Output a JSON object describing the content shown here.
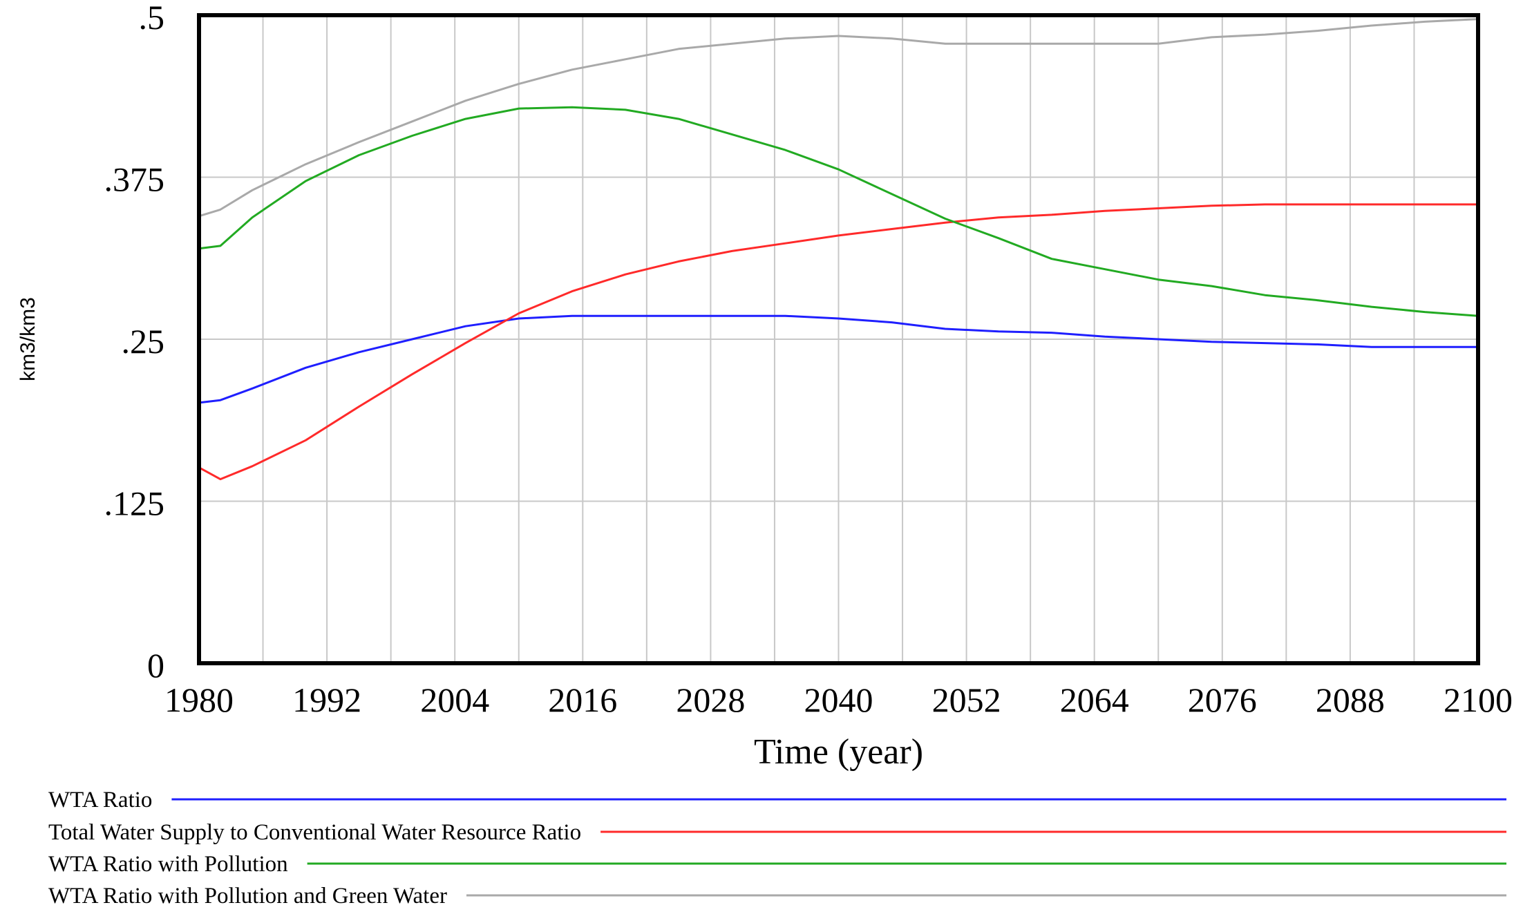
{
  "chart_data": {
    "type": "line",
    "title": "",
    "xlabel": "Time (year)",
    "ylabel": "km3/km3",
    "xlim": [
      1980,
      2100
    ],
    "ylim": [
      0,
      0.5
    ],
    "x_ticks": [
      1980,
      1992,
      2004,
      2016,
      2028,
      2040,
      2052,
      2064,
      2076,
      2088,
      2100
    ],
    "x_tick_labels": [
      "1980",
      "1992",
      "2004",
      "2016",
      "2028",
      "2040",
      "2052",
      "2064",
      "2076",
      "2088",
      "2100"
    ],
    "y_ticks": [
      0,
      0.125,
      0.25,
      0.375,
      0.5
    ],
    "y_tick_labels": [
      "0",
      ".125",
      ".25",
      ".375",
      ".5"
    ],
    "grid": true,
    "legend_position": "bottom",
    "x": [
      1980,
      1982,
      1985,
      1990,
      1995,
      2000,
      2005,
      2010,
      2015,
      2020,
      2025,
      2030,
      2035,
      2040,
      2045,
      2050,
      2055,
      2060,
      2065,
      2070,
      2075,
      2080,
      2085,
      2090,
      2095,
      2100
    ],
    "series": [
      {
        "name": "WTA Ratio",
        "color": "#1f1fff",
        "values": [
          0.201,
          0.203,
          0.212,
          0.228,
          0.24,
          0.25,
          0.26,
          0.266,
          0.268,
          0.268,
          0.268,
          0.268,
          0.268,
          0.266,
          0.263,
          0.258,
          0.256,
          0.255,
          0.252,
          0.25,
          0.248,
          0.247,
          0.246,
          0.244,
          0.244,
          0.244
        ]
      },
      {
        "name": "Total Water Supply to Conventional Water Resource Ratio",
        "color": "#ff2a2a",
        "values": [
          0.151,
          0.142,
          0.152,
          0.172,
          0.198,
          0.223,
          0.247,
          0.27,
          0.287,
          0.3,
          0.31,
          0.318,
          0.324,
          0.33,
          0.335,
          0.34,
          0.344,
          0.346,
          0.349,
          0.351,
          0.353,
          0.354,
          0.354,
          0.354,
          0.354,
          0.354
        ]
      },
      {
        "name": "WTA Ratio with Pollution",
        "color": "#22aa22",
        "values": [
          0.32,
          0.322,
          0.344,
          0.372,
          0.392,
          0.407,
          0.42,
          0.428,
          0.429,
          0.427,
          0.42,
          0.408,
          0.396,
          0.381,
          0.362,
          0.343,
          0.328,
          0.312,
          0.304,
          0.296,
          0.291,
          0.284,
          0.28,
          0.275,
          0.271,
          0.268
        ]
      },
      {
        "name": "WTA Ratio with Pollution and Green Water",
        "color": "#a9a9a9",
        "values": [
          0.345,
          0.35,
          0.365,
          0.385,
          0.402,
          0.418,
          0.434,
          0.447,
          0.458,
          0.466,
          0.474,
          0.478,
          0.482,
          0.484,
          0.482,
          0.478,
          0.478,
          0.478,
          0.478,
          0.478,
          0.483,
          0.485,
          0.488,
          0.492,
          0.495,
          0.497
        ]
      }
    ]
  }
}
